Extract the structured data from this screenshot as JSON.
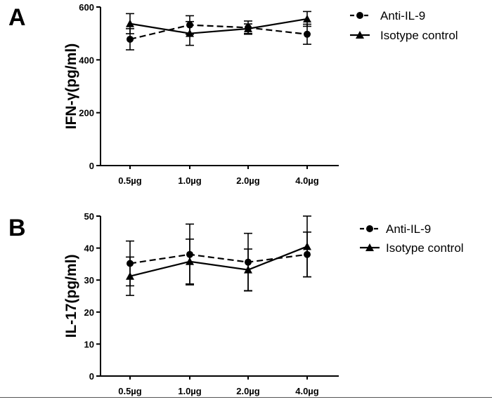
{
  "chart_data": [
    {
      "panel_label": "A",
      "type": "line",
      "categories": [
        "0.5µg",
        "1.0µg",
        "2.0µg",
        "4.0µg"
      ],
      "ylabel": "IFN-γ(pg/ml)",
      "ylim": [
        0,
        600
      ],
      "yticks": [
        "0",
        "200",
        "400",
        "600"
      ],
      "series": [
        {
          "name": "Anti-IL-9",
          "marker": "circle",
          "line": "dashed",
          "values": [
            478,
            532,
            522,
            497
          ],
          "error": [
            40,
            35,
            25,
            38
          ]
        },
        {
          "name": "Isotype control",
          "marker": "triangle",
          "line": "solid",
          "values": [
            537,
            500,
            518,
            555
          ],
          "error": [
            38,
            45,
            18,
            28
          ]
        }
      ],
      "legend_position": "top-right",
      "grid": false
    },
    {
      "panel_label": "B",
      "type": "line",
      "categories": [
        "0.5µg",
        "1.0µg",
        "2.0µg",
        "4.0µg"
      ],
      "ylabel": "IL-17(pg/ml)",
      "ylim": [
        0,
        50
      ],
      "yticks": [
        "0",
        "10",
        "20",
        "30",
        "40",
        "50"
      ],
      "series": [
        {
          "name": "Anti-IL-9",
          "marker": "circle",
          "line": "dashed",
          "values": [
            35.2,
            38,
            35.6,
            38
          ],
          "error": [
            7,
            9.5,
            9,
            7
          ]
        },
        {
          "name": "Isotype control",
          "marker": "triangle",
          "line": "solid",
          "values": [
            31.2,
            35.8,
            33.2,
            40.5
          ],
          "error": [
            6,
            7,
            6.5,
            9.5
          ]
        }
      ],
      "legend_position": "top-right",
      "grid": false
    }
  ]
}
